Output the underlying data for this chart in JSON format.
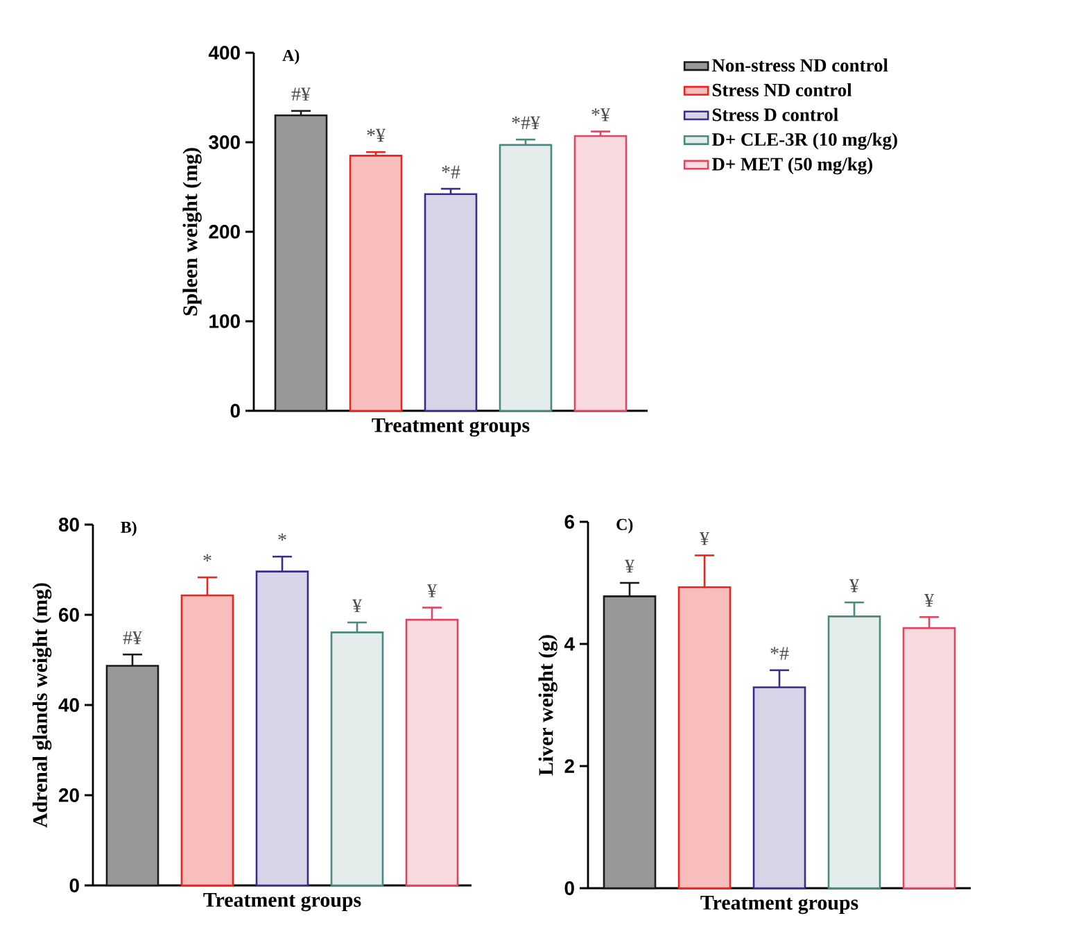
{
  "chart_data": [
    {
      "type": "bar",
      "title": "A)",
      "xlabel": "Treatment groups",
      "ylabel": "Spleen weight (mg)",
      "categories": [
        null
      ],
      "ylim": [
        0,
        400
      ],
      "yticks": [
        0,
        100,
        200,
        300,
        400
      ],
      "legend": "right",
      "series": [
        {
          "name": "Non-stress ND control",
          "color": "#1a1a1a",
          "values": [
            330
          ],
          "errors": [
            5
          ]
        },
        {
          "name": "Stress ND control",
          "color": "#e8251f",
          "values": [
            285
          ],
          "errors": [
            4
          ]
        },
        {
          "name": "Stress D control",
          "color": "#3b2a8a",
          "values": [
            242
          ],
          "errors": [
            6
          ]
        },
        {
          "name": "D+ CLE-3R (10 mg/kg)",
          "color": "#4a8a7e",
          "values": [
            297
          ],
          "errors": [
            6
          ]
        },
        {
          "name": "D+ MET (50 mg/kg)",
          "color": "#e0455f",
          "values": [
            307
          ],
          "errors": [
            5
          ]
        }
      ],
      "annotations": [
        "#¥",
        "*¥",
        "*#",
        "*#¥",
        "*¥"
      ]
    },
    {
      "type": "bar",
      "title": "B)",
      "xlabel": "Treatment groups",
      "ylabel": "Adrenal glands weight (mg)",
      "categories": [
        null
      ],
      "ylim": [
        0,
        80
      ],
      "yticks": [
        0,
        20,
        40,
        60,
        80
      ],
      "series": [
        {
          "color": "#1a1a1a",
          "values": [
            48.7
          ],
          "errors": [
            2.5
          ]
        },
        {
          "color": "#e8251f",
          "values": [
            64.3
          ],
          "errors": [
            4
          ]
        },
        {
          "color": "#3b2a8a",
          "values": [
            69.6
          ],
          "errors": [
            3.3
          ]
        },
        {
          "color": "#4a8a7e",
          "values": [
            56.1
          ],
          "errors": [
            2.2
          ]
        },
        {
          "color": "#e0455f",
          "values": [
            58.9
          ],
          "errors": [
            2.7
          ]
        }
      ],
      "annotations": [
        "#¥",
        "*",
        "*",
        "¥",
        "¥"
      ]
    },
    {
      "type": "bar",
      "title": "C)",
      "xlabel": "Treatment groups",
      "ylabel": "Liver weight (g)",
      "categories": [
        null
      ],
      "ylim": [
        0,
        6
      ],
      "yticks": [
        0,
        2,
        4,
        6
      ],
      "series": [
        {
          "color": "#1a1a1a",
          "values": [
            4.78
          ],
          "errors": [
            0.22
          ]
        },
        {
          "color": "#e8251f",
          "values": [
            4.93
          ],
          "errors": [
            0.52
          ]
        },
        {
          "color": "#3b2a8a",
          "values": [
            3.29
          ],
          "errors": [
            0.28
          ]
        },
        {
          "color": "#4a8a7e",
          "values": [
            4.45
          ],
          "errors": [
            0.23
          ]
        },
        {
          "color": "#e0455f",
          "values": [
            4.26
          ],
          "errors": [
            0.18
          ]
        }
      ],
      "annotations": [
        "¥",
        "¥",
        "*#",
        "¥",
        "¥"
      ]
    }
  ]
}
